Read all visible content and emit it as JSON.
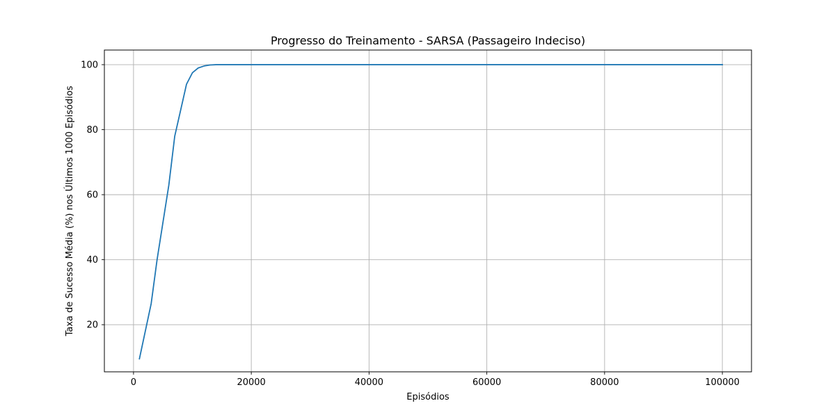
{
  "chart_data": {
    "type": "line",
    "title": "Progresso do Treinamento - SARSA (Passageiro Indeciso)",
    "xlabel": "Episódios",
    "ylabel": "Taxa de Sucesso Média (%) nos Últimos 1000 Episódios",
    "xlim": [
      -4950,
      104950
    ],
    "ylim": [
      5.5,
      104.5
    ],
    "xticks": [
      0,
      20000,
      40000,
      60000,
      80000,
      100000
    ],
    "yticks": [
      20,
      40,
      60,
      80,
      100
    ],
    "grid": true,
    "line_color": "#1f77b4",
    "series": [
      {
        "x": [
          1000,
          2000,
          3000,
          4000,
          5000,
          6000,
          7000,
          8000,
          9000,
          10000,
          11000,
          12000,
          13000,
          14000,
          15000,
          20000,
          30000,
          40000,
          50000,
          60000,
          70000,
          80000,
          90000,
          100000
        ],
        "y": [
          9.5,
          18,
          26.5,
          40,
          51.5,
          63,
          78,
          86,
          94,
          97.5,
          99,
          99.6,
          99.9,
          100,
          100,
          100,
          100,
          100,
          100,
          100,
          100,
          100,
          100,
          100
        ]
      }
    ]
  }
}
